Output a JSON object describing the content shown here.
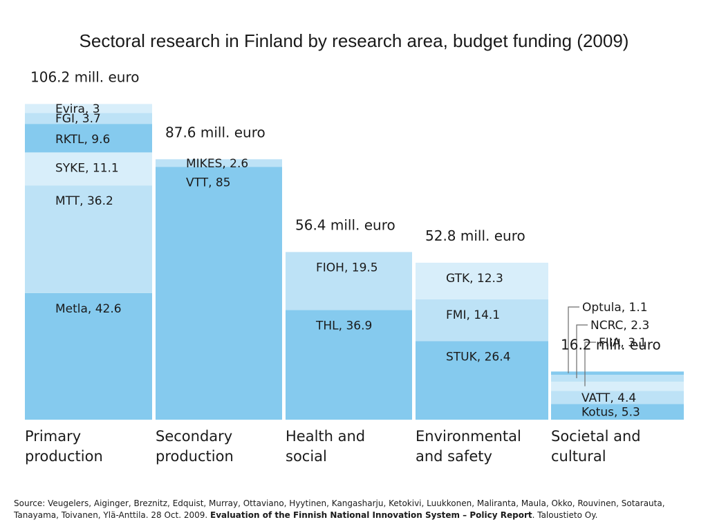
{
  "title": "Sectoral research in Finland by research area, budget funding (2009)",
  "colors": {
    "dark": "#85caee",
    "mid": "#bde2f6",
    "light": "#d8eefa",
    "line": "#6c6c6c"
  },
  "chart_data": {
    "type": "bar",
    "stacked": true,
    "unit": "mill. euro",
    "categories": [
      {
        "name": [
          "Primary",
          "production"
        ],
        "total_label": "106.2 mill. euro",
        "total": 106.2,
        "segments": [
          {
            "label": "Metla, 42.6",
            "value": 42.6,
            "shade": "dark"
          },
          {
            "label": "MTT, 36.2",
            "value": 36.2,
            "shade": "mid"
          },
          {
            "label": "SYKE, 11.1",
            "value": 11.1,
            "shade": "light"
          },
          {
            "label": "RKTL, 9.6",
            "value": 9.6,
            "shade": "dark"
          },
          {
            "label": "FGI, 3.7",
            "value": 3.7,
            "shade": "mid"
          },
          {
            "label": "Evira, 3",
            "value": 3,
            "shade": "light"
          }
        ]
      },
      {
        "name": [
          "Secondary",
          "production"
        ],
        "total_label": "87.6 mill. euro",
        "total": 87.6,
        "segments": [
          {
            "label": "VTT, 85",
            "value": 85,
            "shade": "dark"
          },
          {
            "label": "MIKES, 2.6",
            "value": 2.6,
            "shade": "mid"
          }
        ]
      },
      {
        "name": [
          "Health and",
          "social"
        ],
        "total_label": "56.4 mill. euro",
        "total": 56.4,
        "segments": [
          {
            "label": "THL, 36.9",
            "value": 36.9,
            "shade": "dark"
          },
          {
            "label": "FIOH, 19.5",
            "value": 19.5,
            "shade": "mid"
          }
        ]
      },
      {
        "name": [
          "Environmental",
          "and safety"
        ],
        "total_label": "52.8 mill. euro",
        "total": 52.8,
        "segments": [
          {
            "label": "STUK, 26.4",
            "value": 26.4,
            "shade": "dark"
          },
          {
            "label": "FMI, 14.1",
            "value": 14.1,
            "shade": "mid"
          },
          {
            "label": "GTK, 12.3",
            "value": 12.3,
            "shade": "light"
          }
        ]
      },
      {
        "name": [
          "Societal and",
          "cultural"
        ],
        "total_label": "16.2 mill. euro",
        "total": 16.2,
        "segments": [
          {
            "label": "Kotus, 5.3",
            "value": 5.3,
            "shade": "dark"
          },
          {
            "label": "VATT, 4.4",
            "value": 4.4,
            "shade": "mid"
          },
          {
            "label": "FIIA, 3.1",
            "value": 3.1,
            "shade": "light"
          },
          {
            "label": "NCRC, 2.3",
            "value": 2.3,
            "shade": "mid"
          },
          {
            "label": "Optula, 1.1",
            "value": 1.1,
            "shade": "dark"
          }
        ],
        "callout_labels": [
          "Optula, 1.1",
          "NCRC, 2.3",
          "FIIA, 3.1"
        ]
      }
    ]
  },
  "source": {
    "prefix": "Source: Veugelers, Aiginger, Breznitz, Edquist, Murray, Ottaviano, Hyytinen, Kangasharju, Ketokivi, Luukkonen, Maliranta, Maula, Okko, Rouvinen, Sotarauta, Tanayama, Toivanen, Ylä-Anttila. 28 Oct. 2009. ",
    "report": "Evaluation of the Finnish National Innovation System – Policy Report",
    "suffix": ". Taloustieto Oy."
  }
}
